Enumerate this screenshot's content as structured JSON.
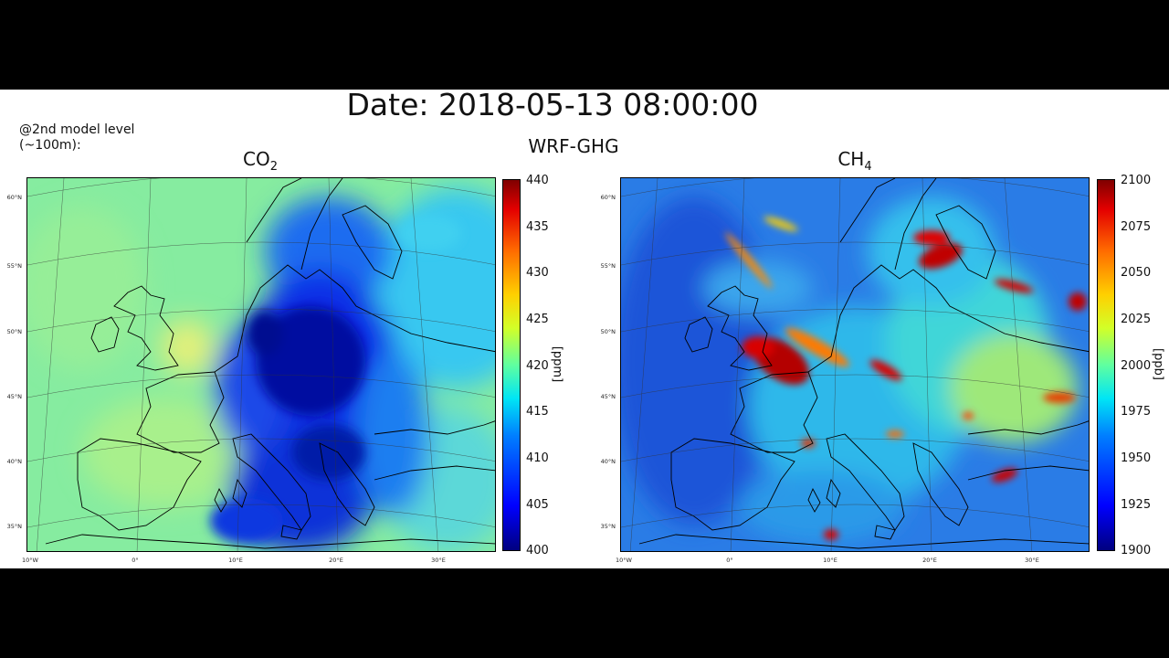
{
  "header": {
    "date_label": "Date: 2018-05-13 08:00:00",
    "level_label": "@2nd model level (~100m):",
    "model_label": "WRF-GHG"
  },
  "panels": [
    {
      "title_main": "CO",
      "title_sub": "2",
      "unit": "[ppm]",
      "colorbar_ticks": [
        "440",
        "435",
        "430",
        "425",
        "420",
        "415",
        "410",
        "405",
        "400"
      ],
      "colorbar_range": [
        400,
        440
      ],
      "lat_labels": [
        "60°N",
        "55°N",
        "50°N",
        "45°N",
        "40°N",
        "35°N"
      ],
      "lon_labels": [
        "10°W",
        "0°",
        "10°E",
        "20°E",
        "30°E"
      ]
    },
    {
      "title_main": "CH",
      "title_sub": "4",
      "unit": "[ppb]",
      "colorbar_ticks": [
        "2100",
        "2075",
        "2050",
        "2025",
        "2000",
        "1975",
        "1950",
        "1925",
        "1900"
      ],
      "colorbar_range": [
        1900,
        2100
      ],
      "lat_labels": [
        "60°N",
        "55°N",
        "50°N",
        "45°N",
        "40°N",
        "35°N"
      ],
      "lon_labels": [
        "10°W",
        "0°",
        "10°E",
        "20°E",
        "30°E"
      ]
    }
  ],
  "colors": {
    "co2_background": "#7fe6a0",
    "co2_low": "#0000c8",
    "ch4_background": "#1f6fe0",
    "ch4_high": "#d40000"
  }
}
